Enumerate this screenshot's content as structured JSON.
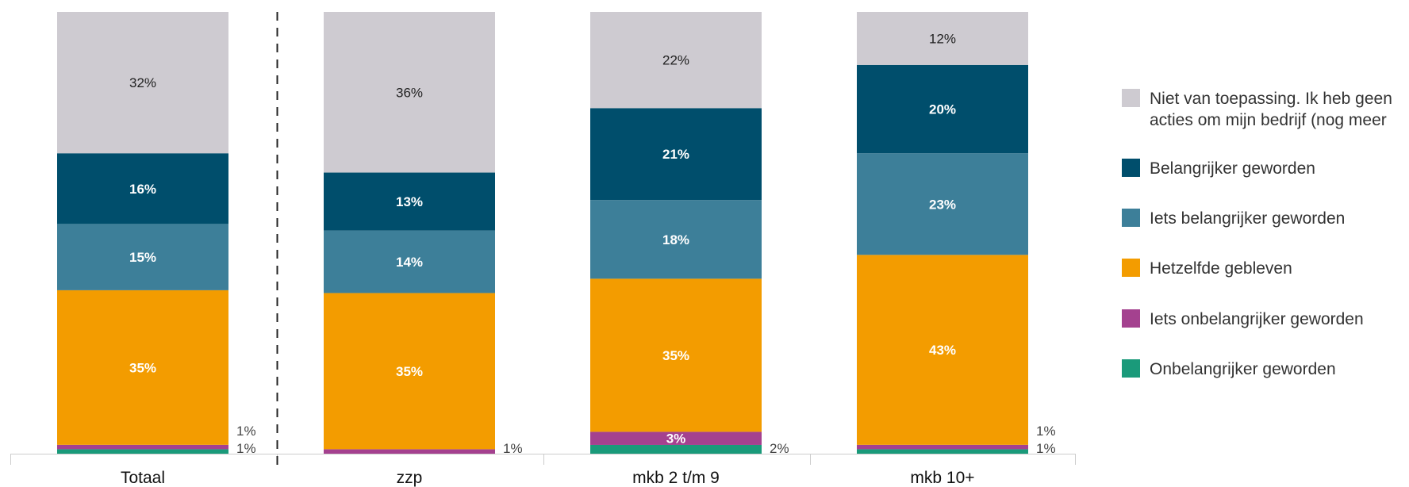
{
  "chart_data": {
    "type": "bar",
    "stacked": true,
    "categories": [
      "Totaal",
      "zzp",
      "mkb 2 t/m 9",
      "mkb 10+"
    ],
    "series": [
      {
        "name": "Onbelangrijker geworden",
        "color": "#1a9a7a",
        "values": [
          1,
          0,
          2,
          1
        ],
        "labels": [
          "1%",
          "",
          "2%",
          "1%"
        ]
      },
      {
        "name": "Iets onbelangrijker geworden",
        "color": "#a4418f",
        "values": [
          1,
          1,
          3,
          1
        ],
        "labels": [
          "1%",
          "1%",
          "3%",
          "1%"
        ]
      },
      {
        "name": "Hetzelfde gebleven",
        "color": "#f39c00",
        "values": [
          35,
          35,
          35,
          43
        ],
        "labels": [
          "35%",
          "35%",
          "35%",
          "43%"
        ]
      },
      {
        "name": "Iets belangrijker geworden",
        "color": "#3d7f99",
        "values": [
          15,
          14,
          18,
          23
        ],
        "labels": [
          "15%",
          "14%",
          "18%",
          "23%"
        ]
      },
      {
        "name": "Belangrijker geworden",
        "color": "#004e6c",
        "values": [
          16,
          13,
          21,
          20
        ],
        "labels": [
          "16%",
          "13%",
          "21%",
          "20%"
        ]
      },
      {
        "name": "Niet van toepassing. Ik heb geen acties om mijn bedrijf (nog meer",
        "color": "#cecbd1",
        "values": [
          32,
          36,
          22,
          12
        ],
        "labels": [
          "32%",
          "36%",
          "22%",
          "12%"
        ]
      }
    ],
    "legend": {
      "placement": "right",
      "items": [
        {
          "text": "Niet van toepassing. Ik heb geen",
          "text2": "acties om mijn bedrijf (nog meer",
          "color": "#cecbd1"
        },
        {
          "text": "Belangrijker geworden",
          "color": "#004e6c"
        },
        {
          "text": "Iets belangrijker geworden",
          "color": "#3d7f99"
        },
        {
          "text": "Hetzelfde gebleven",
          "color": "#f39c00"
        },
        {
          "text": "Iets onbelangrijker geworden",
          "color": "#a4418f"
        },
        {
          "text": "Onbelangrijker geworden",
          "color": "#1a9a7a"
        }
      ]
    },
    "ylim": [
      0,
      100
    ],
    "grid": false,
    "separator_after_category": 0
  }
}
